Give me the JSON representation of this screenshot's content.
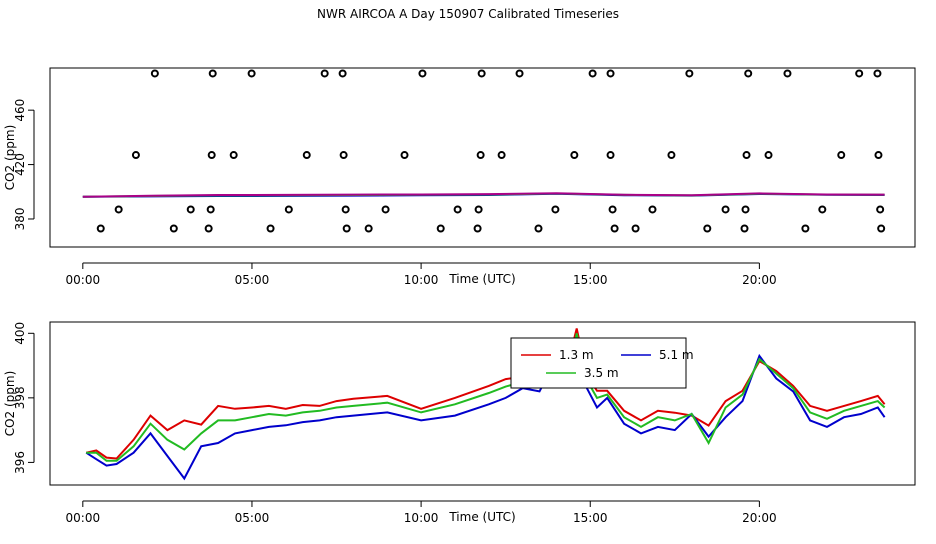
{
  "title": "NWR AIRCOA A  Day 150907  Calibrated Timeseries",
  "chart_data": [
    {
      "type": "line",
      "xlabel": "Time (UTC)",
      "ylabel": "CO2 (ppm)",
      "xlim": [
        -0.97,
        24.6
      ],
      "ylim": [
        359.4,
        491
      ],
      "xticks": [
        {
          "value": 0,
          "label": "00:00"
        },
        {
          "value": 5,
          "label": "05:00"
        },
        {
          "value": 10,
          "label": "10:00"
        },
        {
          "value": 15,
          "label": "15:00"
        },
        {
          "value": 20,
          "label": "20:00"
        }
      ],
      "yticks": [
        380,
        420,
        460
      ],
      "x": [
        0,
        2,
        4,
        6,
        8,
        10,
        12,
        14,
        16,
        18,
        20,
        22,
        23.7
      ],
      "series": [
        {
          "color": "#0000cc",
          "values": [
            396.3,
            396.6,
            396.9,
            397.0,
            397.2,
            397.4,
            397.6,
            398.5,
            397.5,
            397.2,
            398.4,
            397.8,
            397.6
          ]
        },
        {
          "color": "#22bb22",
          "values": [
            396.3,
            396.9,
            397.3,
            397.4,
            397.6,
            397.8,
            398.0,
            398.7,
            397.7,
            397.3,
            398.6,
            397.9,
            397.8
          ]
        },
        {
          "color": "#aa0088",
          "values": [
            396.3,
            397.1,
            397.6,
            397.7,
            397.9,
            398.0,
            398.3,
            398.9,
            397.8,
            397.4,
            398.8,
            398.0,
            397.9
          ]
        }
      ],
      "points": {
        "x": [
          2.13,
          3.84,
          4.99,
          7.15,
          7.68,
          10.04,
          11.79,
          12.91,
          15.07,
          15.6,
          17.93,
          19.67,
          20.83,
          22.95,
          23.49,
          1.57,
          3.81,
          4.46,
          6.62,
          7.71,
          9.51,
          11.76,
          12.38,
          14.53,
          15.6,
          17.4,
          19.62,
          20.27,
          22.42,
          23.52,
          1.06,
          3.19,
          3.78,
          6.09,
          7.77,
          8.95,
          11.08,
          11.7,
          13.97,
          15.66,
          16.84,
          19.0,
          19.59,
          21.86,
          23.57,
          0.53,
          2.69,
          3.72,
          5.55,
          7.8,
          8.45,
          10.58,
          11.67,
          13.47,
          15.72,
          16.34,
          18.46,
          19.56,
          21.36,
          23.6
        ],
        "y": [
          487,
          487,
          487,
          487,
          487,
          487,
          487,
          487,
          487,
          487,
          487,
          487,
          487,
          487,
          487,
          427,
          427,
          427,
          427,
          427,
          427,
          427,
          427,
          427,
          427,
          427,
          427,
          427,
          427,
          427,
          387,
          387,
          387,
          387,
          387,
          387,
          387,
          387,
          387,
          387,
          387,
          387,
          387,
          387,
          387,
          373,
          373,
          373,
          373,
          373,
          373,
          373,
          373,
          373,
          373,
          373,
          373,
          373,
          373,
          373
        ]
      }
    },
    {
      "type": "line",
      "xlabel": "Time (UTC)",
      "ylabel": "CO2 (ppm)",
      "xlim": [
        -0.97,
        24.6
      ],
      "ylim": [
        395.3,
        400.35
      ],
      "xticks": [
        {
          "value": 0,
          "label": "00:00"
        },
        {
          "value": 5,
          "label": "05:00"
        },
        {
          "value": 10,
          "label": "10:00"
        },
        {
          "value": 15,
          "label": "15:00"
        },
        {
          "value": 20,
          "label": "20:00"
        }
      ],
      "yticks": [
        396,
        398,
        400
      ],
      "x": [
        0.1,
        0.4,
        0.7,
        1.0,
        1.5,
        2.0,
        2.5,
        3.0,
        3.5,
        4.0,
        4.5,
        5.0,
        5.5,
        6.0,
        6.5,
        7.0,
        7.5,
        8.0,
        9.0,
        10.0,
        11.0,
        12.0,
        12.5,
        13.0,
        13.5,
        13.8,
        14.1,
        14.4,
        14.6,
        14.9,
        15.2,
        15.5,
        16.0,
        16.5,
        17.0,
        17.5,
        18.0,
        18.5,
        19.0,
        19.5,
        20.0,
        20.5,
        21.0,
        21.5,
        22.0,
        22.5,
        23.0,
        23.5,
        23.7
      ],
      "legend": "top-right",
      "series": [
        {
          "name": "1.3 m",
          "color": "#dd0000",
          "values": [
            396.3,
            396.37,
            396.15,
            396.12,
            396.7,
            397.45,
            397.0,
            397.3,
            397.17,
            397.75,
            397.66,
            397.7,
            397.75,
            397.66,
            397.78,
            397.75,
            397.9,
            397.97,
            398.06,
            397.66,
            398.0,
            398.37,
            398.58,
            398.65,
            398.65,
            399.08,
            399.54,
            399.3,
            400.15,
            398.68,
            398.22,
            398.22,
            397.6,
            397.3,
            397.6,
            397.54,
            397.45,
            397.14,
            397.9,
            398.22,
            399.14,
            398.83,
            398.37,
            397.75,
            397.6,
            397.75,
            397.9,
            398.06,
            397.8
          ]
        },
        {
          "name": "5.1 m",
          "color": "#0000cc",
          "values": [
            396.3,
            396.1,
            395.9,
            395.95,
            396.3,
            396.9,
            396.2,
            395.5,
            396.5,
            396.6,
            396.9,
            397.0,
            397.1,
            397.15,
            397.25,
            397.3,
            397.4,
            397.45,
            397.55,
            397.3,
            397.45,
            397.8,
            398.0,
            398.3,
            398.2,
            398.8,
            399.5,
            398.6,
            399.8,
            398.3,
            397.7,
            398.0,
            397.2,
            396.9,
            397.1,
            397.0,
            397.5,
            396.8,
            397.4,
            397.9,
            399.3,
            398.6,
            398.2,
            397.3,
            397.1,
            397.4,
            397.5,
            397.7,
            397.4
          ]
        },
        {
          "name": "3.5 m",
          "color": "#22bb22",
          "values": [
            396.3,
            396.3,
            396.05,
            396.05,
            396.5,
            397.2,
            396.7,
            396.4,
            396.9,
            397.3,
            397.3,
            397.4,
            397.5,
            397.45,
            397.55,
            397.6,
            397.7,
            397.75,
            397.85,
            397.55,
            397.8,
            398.15,
            398.35,
            398.5,
            398.45,
            398.95,
            399.5,
            399.0,
            400.0,
            398.55,
            398.0,
            398.1,
            397.4,
            397.1,
            397.4,
            397.3,
            397.5,
            396.6,
            397.7,
            398.1,
            399.2,
            398.75,
            398.3,
            397.55,
            397.35,
            397.6,
            397.75,
            397.9,
            397.7
          ]
        }
      ]
    }
  ]
}
